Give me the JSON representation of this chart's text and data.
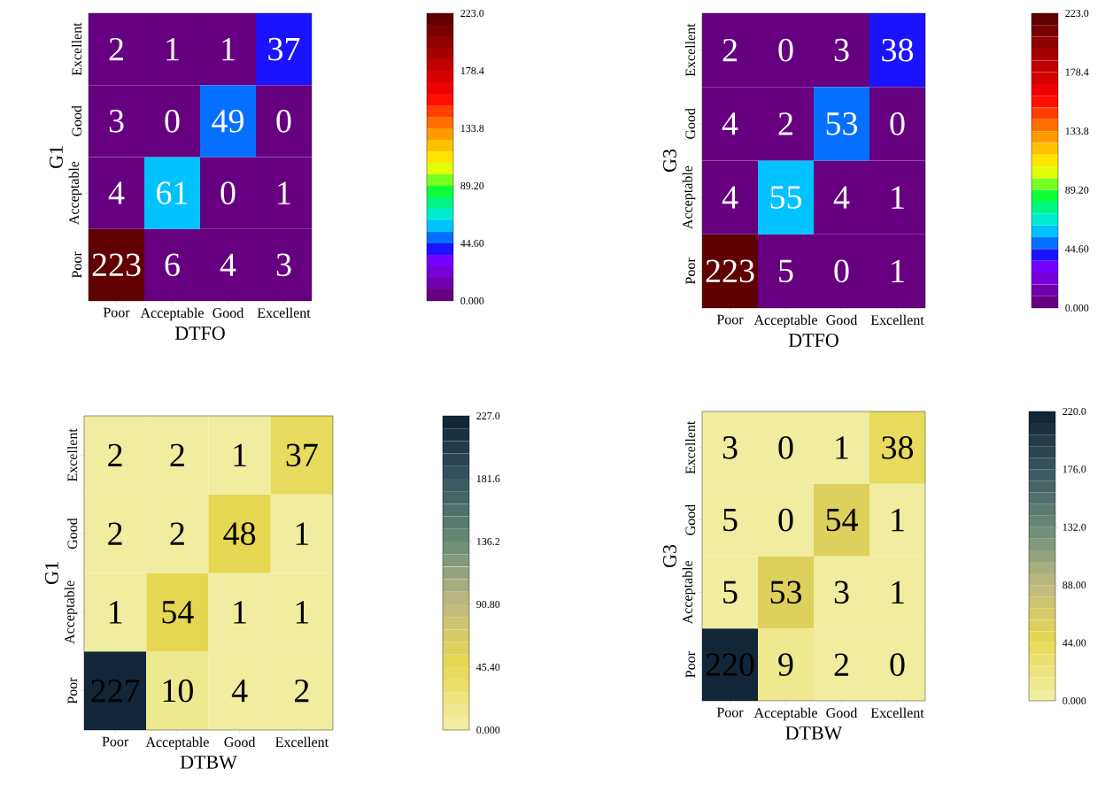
{
  "chart_data": [
    {
      "type": "heatmap",
      "xlabel": "DTFO",
      "ylabel": "G1",
      "categories": [
        "Poor",
        "Acceptable",
        "Good",
        "Excellent"
      ],
      "y_categories": [
        "Excellent",
        "Good",
        "Acceptable",
        "Poor"
      ],
      "cells": [
        [
          2,
          1,
          1,
          37
        ],
        [
          3,
          0,
          49,
          0
        ],
        [
          4,
          61,
          0,
          1
        ],
        [
          223,
          6,
          4,
          3
        ]
      ],
      "data_labels": true,
      "clim": [
        0,
        223
      ],
      "cticks": [
        {
          "value": 0,
          "label": "0.000"
        },
        {
          "value": 44.6,
          "label": "44.60"
        },
        {
          "value": 89.2,
          "label": "89.20"
        },
        {
          "value": 133.8,
          "label": "133.8"
        },
        {
          "value": 178.4,
          "label": "178.4"
        },
        {
          "value": 223,
          "label": "223.0"
        }
      ]
    },
    {
      "type": "heatmap",
      "xlabel": "DTFO",
      "ylabel": "G3",
      "categories": [
        "Poor",
        "Acceptable",
        "Good",
        "Excellent"
      ],
      "y_categories": [
        "Excellent",
        "Good",
        "Acceptable",
        "Poor"
      ],
      "cells": [
        [
          2,
          0,
          3,
          38
        ],
        [
          4,
          2,
          53,
          0
        ],
        [
          4,
          55,
          4,
          1
        ],
        [
          223,
          5,
          0,
          1
        ]
      ],
      "data_labels": true,
      "clim": [
        0,
        223
      ],
      "cticks": [
        {
          "value": 0,
          "label": "0.000"
        },
        {
          "value": 44.6,
          "label": "44.60"
        },
        {
          "value": 89.2,
          "label": "89.20"
        },
        {
          "value": 133.8,
          "label": "133.8"
        },
        {
          "value": 178.4,
          "label": "178.4"
        },
        {
          "value": 223,
          "label": "223.0"
        }
      ]
    },
    {
      "type": "heatmap",
      "xlabel": "DTBW",
      "ylabel": "G1",
      "categories": [
        "Poor",
        "Acceptable",
        "Good",
        "Excellent"
      ],
      "y_categories": [
        "Excellent",
        "Good",
        "Acceptable",
        "Poor"
      ],
      "cells": [
        [
          2,
          2,
          1,
          37
        ],
        [
          2,
          2,
          48,
          1
        ],
        [
          1,
          54,
          1,
          1
        ],
        [
          227,
          10,
          4,
          2
        ]
      ],
      "data_labels": true,
      "clim": [
        0,
        227
      ],
      "cticks": [
        {
          "value": 0,
          "label": "0.000"
        },
        {
          "value": 45.4,
          "label": "45.40"
        },
        {
          "value": 90.8,
          "label": "90.80"
        },
        {
          "value": 136.2,
          "label": "136.2"
        },
        {
          "value": 181.6,
          "label": "181.6"
        },
        {
          "value": 227,
          "label": "227.0"
        }
      ]
    },
    {
      "type": "heatmap",
      "xlabel": "DTBW",
      "ylabel": "G3",
      "categories": [
        "Poor",
        "Acceptable",
        "Good",
        "Excellent"
      ],
      "y_categories": [
        "Excellent",
        "Good",
        "Acceptable",
        "Poor"
      ],
      "cells": [
        [
          3,
          0,
          1,
          38
        ],
        [
          5,
          0,
          54,
          1
        ],
        [
          5,
          53,
          3,
          1
        ],
        [
          220,
          9,
          2,
          0
        ]
      ],
      "data_labels": true,
      "clim": [
        0,
        220
      ],
      "cticks": [
        {
          "value": 0,
          "label": "0.000"
        },
        {
          "value": 44,
          "label": "44.00"
        },
        {
          "value": 88,
          "label": "88.00"
        },
        {
          "value": 132,
          "label": "132.0"
        },
        {
          "value": 176,
          "label": "176.0"
        },
        {
          "value": 220,
          "label": "220.0"
        }
      ]
    }
  ]
}
